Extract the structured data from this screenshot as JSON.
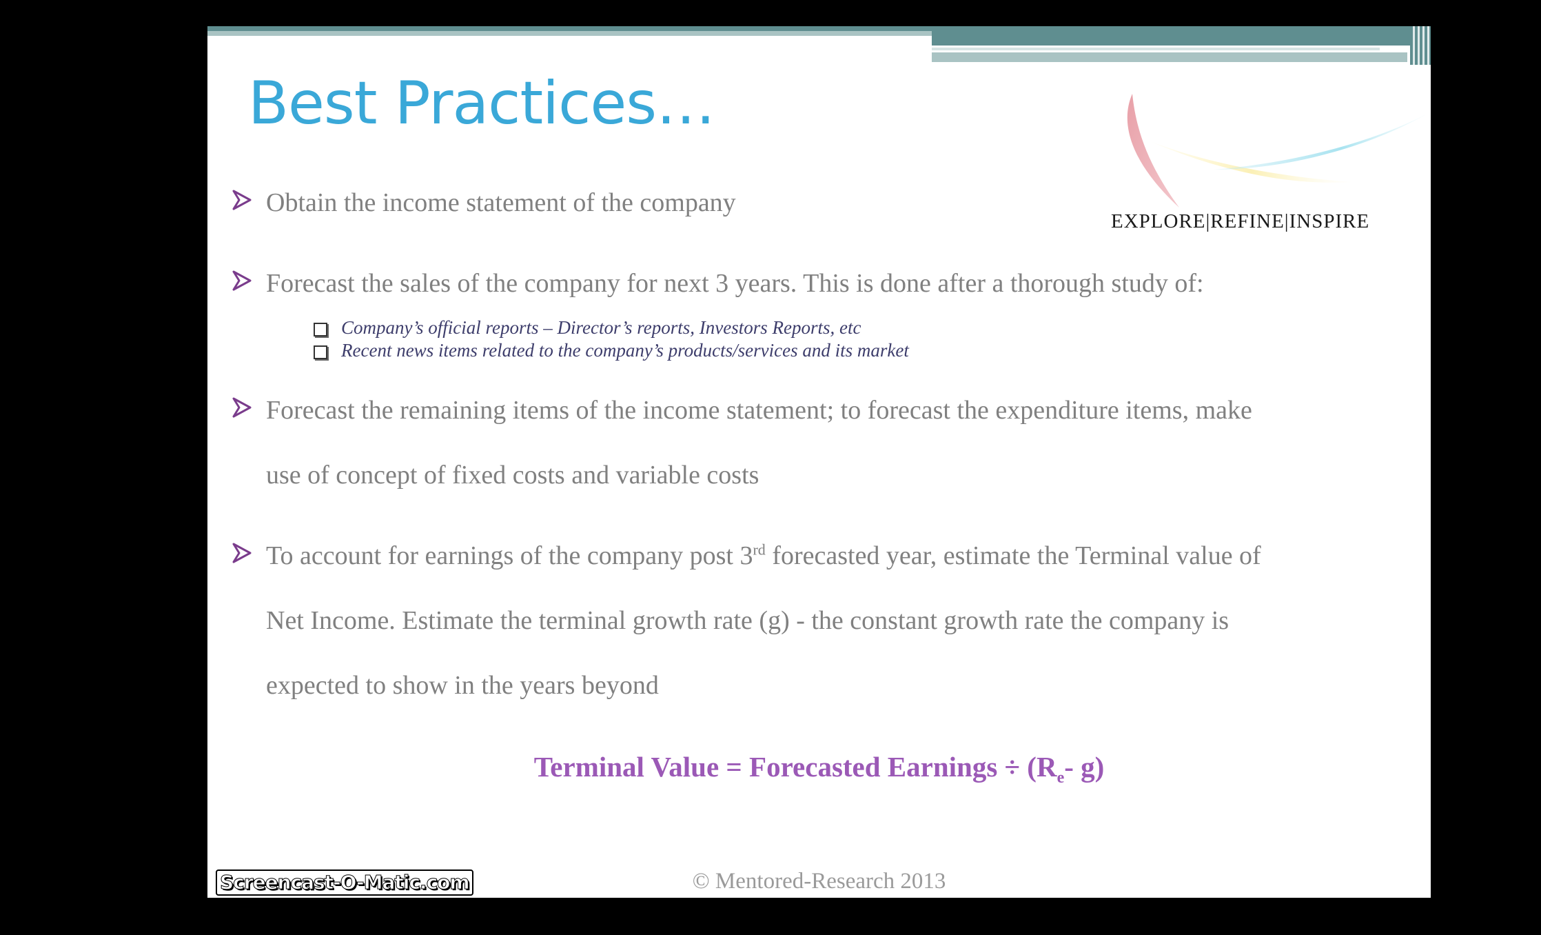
{
  "slide": {
    "title": "Best Practices…",
    "tagline": "EXPLORE|REFINE|INSPIRE",
    "bullets": [
      {
        "text": "Obtain the income statement of the company"
      },
      {
        "text": "Forecast the sales of the company for next 3 years. This is done after a thorough study of:"
      },
      {
        "line1": "Forecast the remaining  items of the income statement; to forecast the expenditure items, make",
        "line2": "use of concept of fixed costs and variable costs"
      },
      {
        "line1_pre": "To account for earnings of the company post 3",
        "line1_sup": "rd",
        "line1_post": " forecasted year, estimate  the Terminal value of",
        "line2": "Net Income. Estimate the terminal growth rate (g) - the constant growth rate the company is",
        "line3": "expected to show in the years  beyond"
      }
    ],
    "sub_items": [
      "Company’s official reports – Director’s reports, Investors Reports, etc",
      "Recent news items related to the company’s products/services and its market"
    ],
    "formula": {
      "prefix": "Terminal Value = Forecasted Earnings ÷ (R",
      "subscript": "e",
      "suffix": "- g)"
    },
    "copyright": "© Mentored-Research 2013"
  },
  "watermark": "Screencast-O-Matic.com",
  "colors": {
    "title": "#3aa8d8",
    "bullet_arrow": "#7a3c8c",
    "formula": "#9b59b6",
    "body_text": "#808080",
    "header_bar": "#5f8e90"
  }
}
